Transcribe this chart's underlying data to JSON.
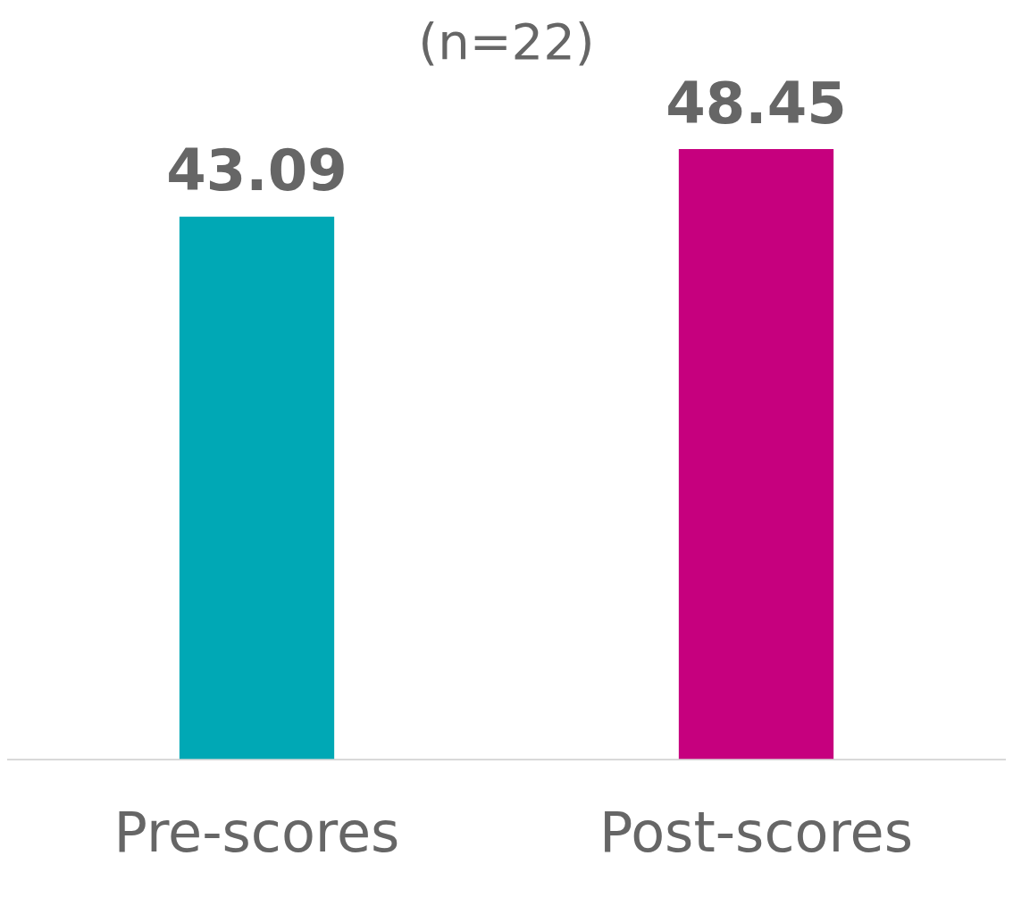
{
  "chart_data": {
    "type": "bar",
    "title": "(n=22)",
    "categories": [
      "Pre-scores",
      "Post-scores"
    ],
    "values": [
      43.09,
      48.45
    ],
    "colors": [
      "#00a8b5",
      "#c6007e"
    ],
    "tick_labels": "x",
    "data_labels": true,
    "grid": false,
    "legend": false
  }
}
